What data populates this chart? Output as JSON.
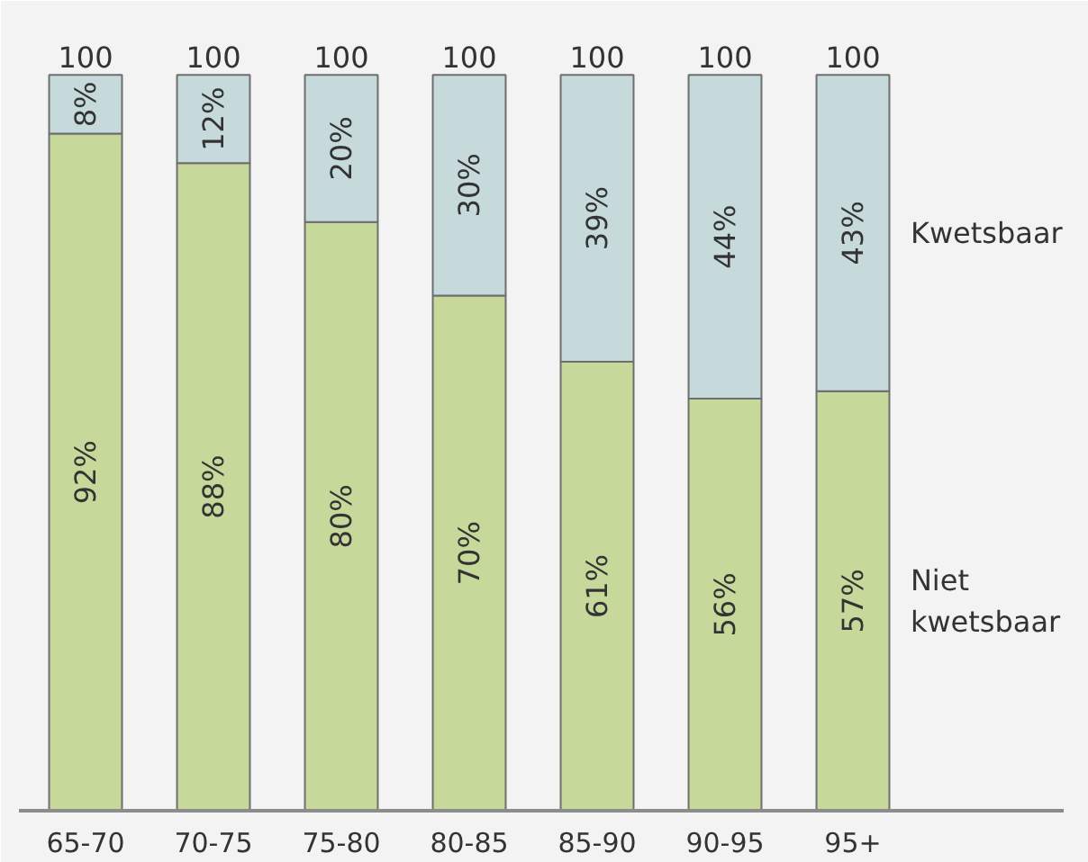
{
  "chart_data": {
    "type": "bar",
    "stacked": true,
    "categories": [
      "65-70",
      "70-75",
      "75-80",
      "80-85",
      "85-90",
      "90-95",
      "95+"
    ],
    "series": [
      {
        "name": "Niet kwetsbaar",
        "color": "#c6d99b",
        "values": [
          92,
          88,
          80,
          70,
          61,
          56,
          57
        ],
        "value_labels": [
          "92%",
          "88%",
          "80%",
          "70%",
          "61%",
          "56%",
          "57%"
        ]
      },
      {
        "name": "Kwetsbaar",
        "color": "#c6d9db",
        "values": [
          8,
          12,
          20,
          30,
          39,
          44,
          43
        ],
        "value_labels": [
          "8%",
          "12%",
          "20%",
          "30%",
          "39%",
          "44%",
          "43%"
        ]
      }
    ],
    "totals": [
      "100",
      "100",
      "100",
      "100",
      "100",
      "100",
      "100"
    ]
  }
}
